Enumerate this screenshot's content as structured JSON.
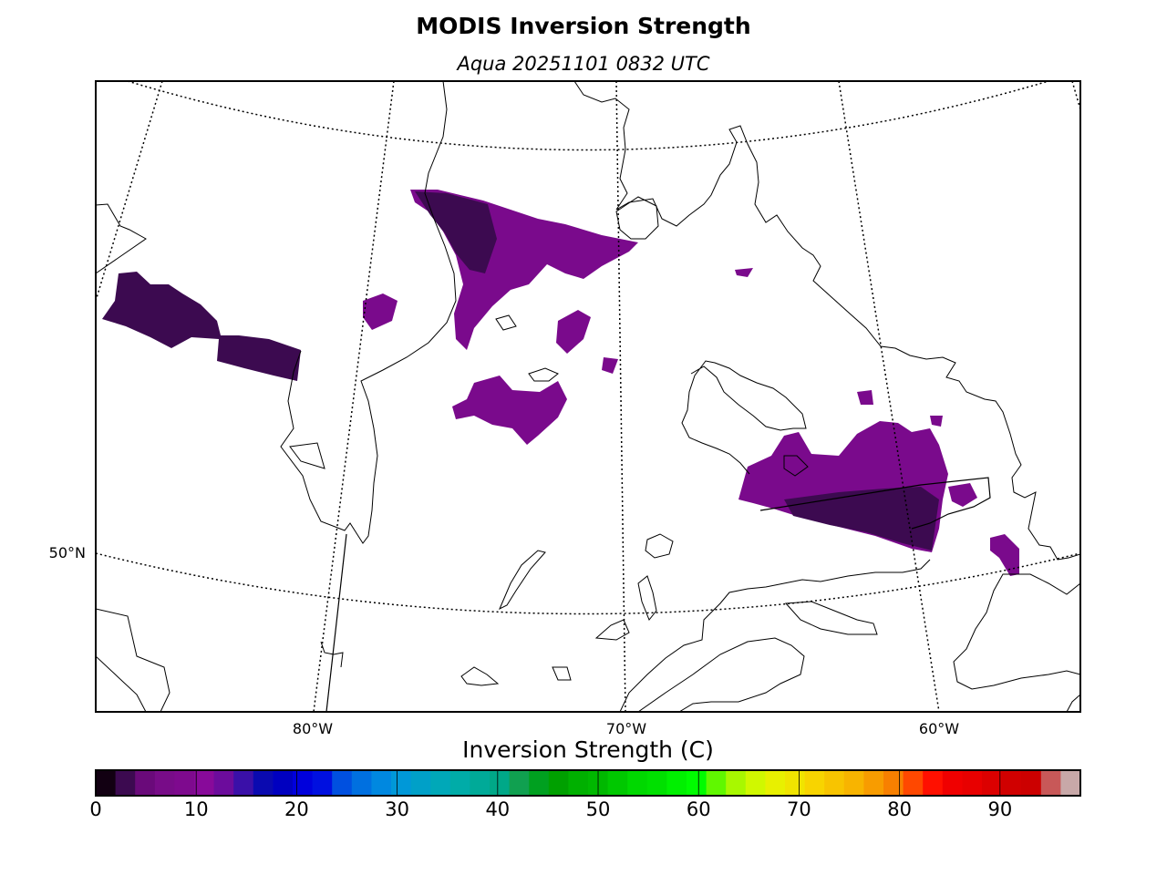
{
  "title": "MODIS Inversion Strength",
  "subtitle": "Aqua 20251101 0832 UTC",
  "map": {
    "lat_labels": [
      "50°N"
    ],
    "lon_labels": [
      "80°W",
      "70°W",
      "60°W"
    ]
  },
  "colorbar": {
    "label": "Inversion Strength (C)",
    "ticks": [
      "0",
      "10",
      "20",
      "30",
      "40",
      "50",
      "60",
      "70",
      "80",
      "90"
    ],
    "range": [
      0,
      98
    ],
    "colors": [
      "#120012",
      "#3c0a50",
      "#6a0a7a",
      "#780c88",
      "#7e0a8e",
      "#880a9a",
      "#6c0c9c",
      "#3a10a8",
      "#0a0ab0",
      "#0000c0",
      "#0000dc",
      "#0010e0",
      "#0050e0",
      "#0070e0",
      "#0088e0",
      "#0098d8",
      "#00a0c8",
      "#00a8b8",
      "#00aca8",
      "#00aa98",
      "#00a888",
      "#10a050",
      "#00a020",
      "#00a000",
      "#00b000",
      "#00b800",
      "#00c800",
      "#00d800",
      "#00e000",
      "#00f000",
      "#00fc00",
      "#60f800",
      "#a8f800",
      "#d0f800",
      "#e8f000",
      "#f0e400",
      "#f8d400",
      "#f8c400",
      "#f8b400",
      "#f89c00",
      "#f88000",
      "#ff4800",
      "#ff1000",
      "#f00000",
      "#e80000",
      "#dc0000",
      "#d00000",
      "#cc0000",
      "#c85858",
      "#c8a8a8"
    ]
  },
  "legend": {
    "data_color": "#7a0a8c",
    "dark_data_color": "#3c0a50"
  }
}
